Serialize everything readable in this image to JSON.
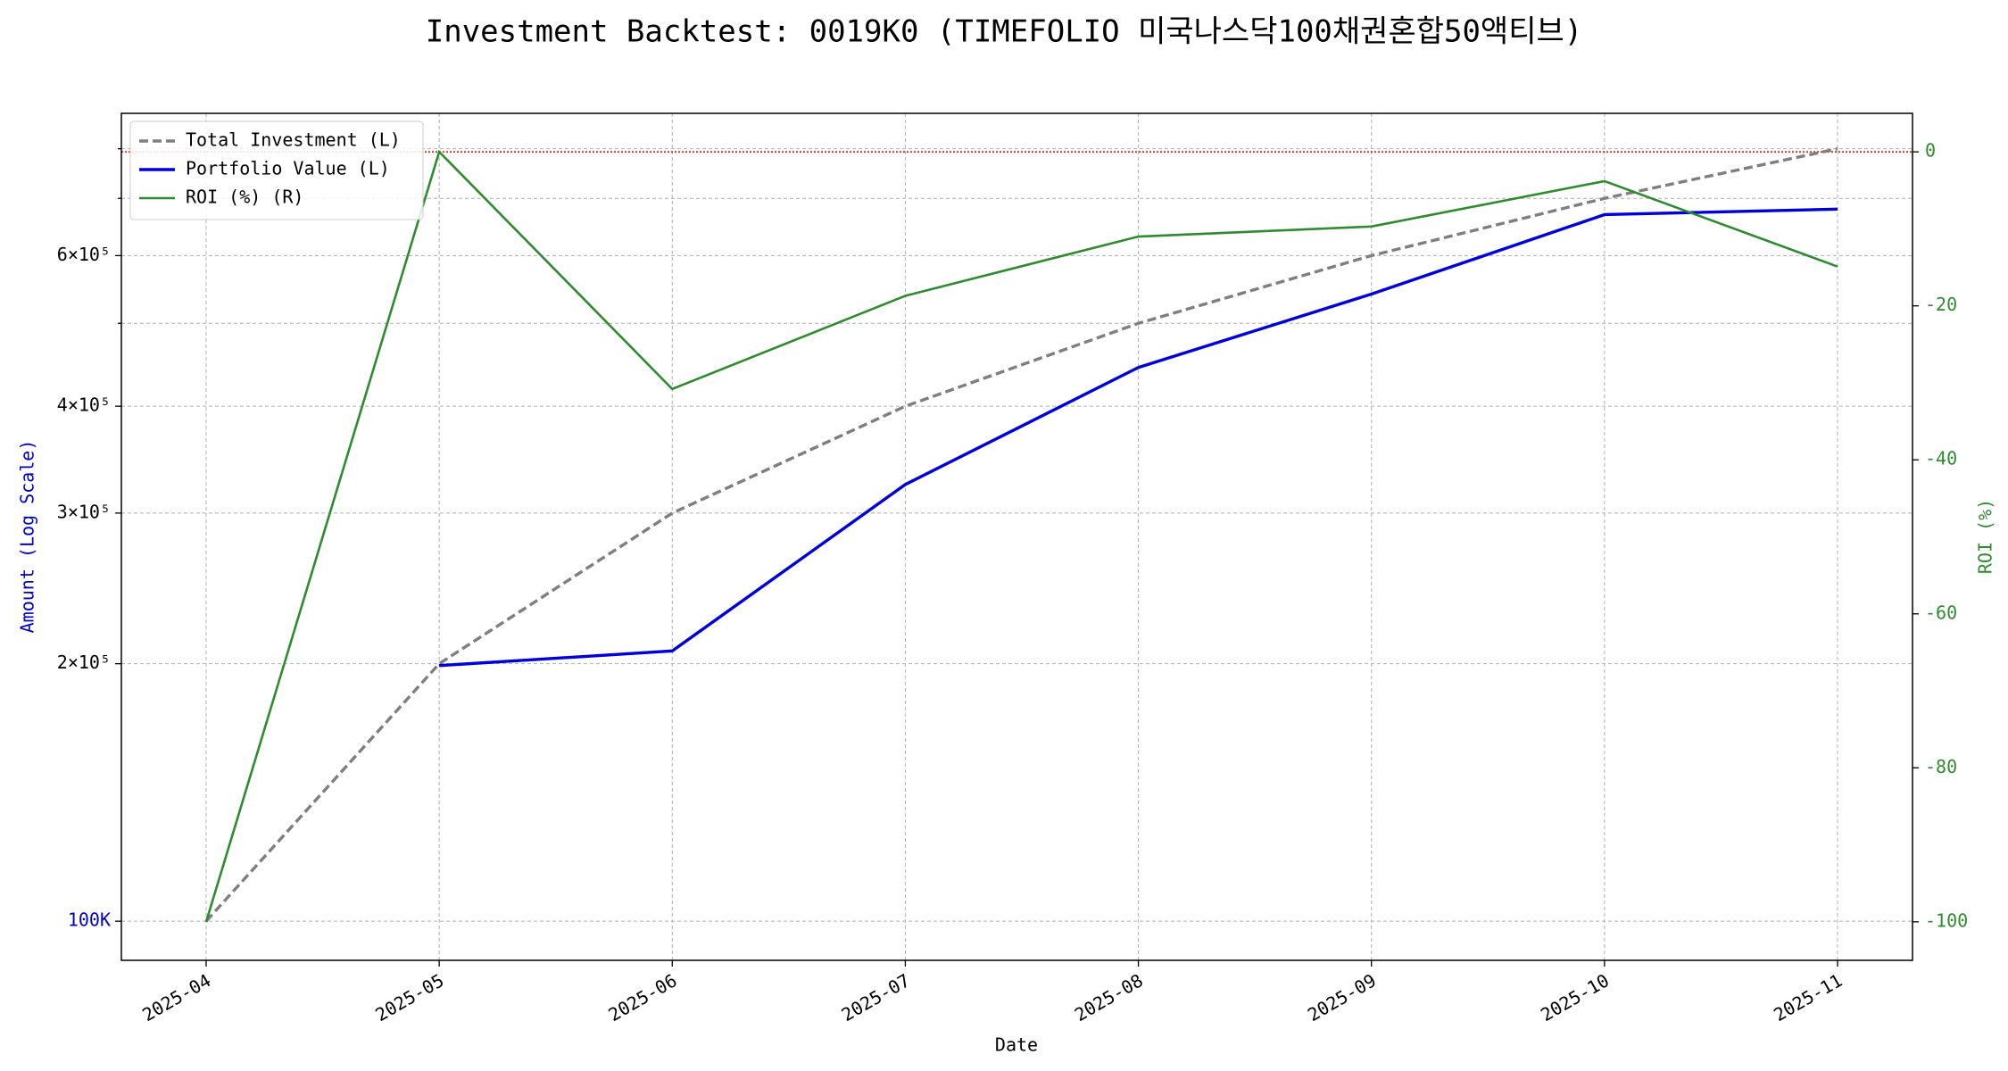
{
  "chart_data": {
    "type": "line",
    "title": "Investment Backtest: 0019K0 (TIMEFOLIO 미국나스닥100채권혼합50액티브)",
    "xlabel": "Date",
    "ylabel": "Amount (Log Scale)",
    "ylabel_color": "#0000cc",
    "y2label": "ROI (%)",
    "y2label_color": "#2e8b2e",
    "x": [
      "2025-04",
      "2025-05",
      "2025-06",
      "2025-07",
      "2025-08",
      "2025-09",
      "2025-10",
      "2025-11"
    ],
    "xticks": [
      "2025-04",
      "2025-05",
      "2025-06",
      "2025-07",
      "2025-08",
      "2025-09",
      "2025-10",
      "2025-11"
    ],
    "yscale": "log",
    "ylim": [
      90000,
      880000
    ],
    "yticks": [
      {
        "value": 100000,
        "label": "100K",
        "color": "#0000cc"
      },
      {
        "value": 200000,
        "label": "2×10⁵"
      },
      {
        "value": 300000,
        "label": "3×10⁵"
      },
      {
        "value": 400000,
        "label": "4×10⁵"
      },
      {
        "value": 600000,
        "label": "6×10⁵"
      }
    ],
    "yminor_ticks": [
      500000,
      700000,
      800000
    ],
    "y2lim": [
      -105,
      5
    ],
    "y2ticks": [
      0,
      -20,
      -40,
      -60,
      -80,
      -100
    ],
    "y2tick_color": "#2e8b2e",
    "grid": true,
    "legend": "upper left",
    "reference_line": {
      "axis": "y2",
      "value": 0,
      "color": "#dd0000"
    },
    "series": [
      {
        "name": "Total Investment (L)",
        "color": "#7f7f7f",
        "linestyle": "dashed",
        "axis": "y",
        "values": [
          100000,
          200000,
          300000,
          400000,
          500000,
          600000,
          700000,
          800000
        ]
      },
      {
        "name": "Portfolio Value (L)",
        "color": "#0000dd",
        "linestyle": "solid",
        "axis": "y",
        "values": [
          null,
          199000,
          207000,
          324000,
          444000,
          541000,
          670000,
          680000
        ]
      },
      {
        "name": "ROI (%) (R)",
        "color": "#2e8b2e",
        "linestyle": "solid",
        "axis": "y2",
        "values": [
          -100,
          0,
          -30.8,
          -18.7,
          -11.0,
          -9.7,
          -3.8,
          -14.9
        ]
      }
    ]
  }
}
